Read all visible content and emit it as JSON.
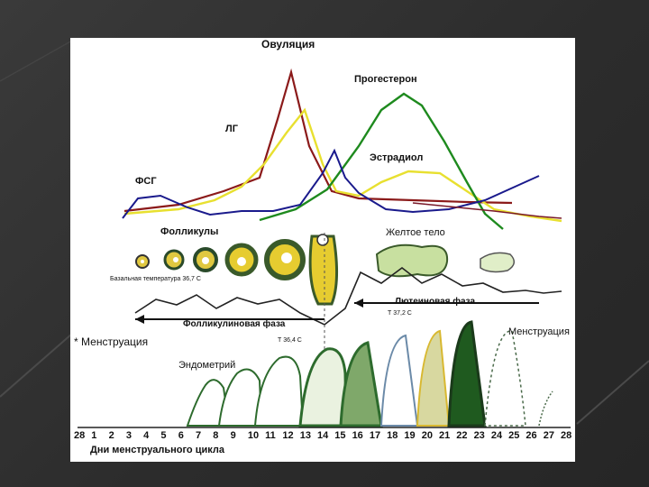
{
  "labels": {
    "ovulation": "Овуляция",
    "progesterone": "Прогестерон",
    "lh": "ЛГ",
    "estradiol": "Эстрадиол",
    "fsh": "ФСГ",
    "follicles": "Фолликулы",
    "corpus_luteum": "Желтое тело",
    "basal_temp": "Базальная температура 36,7 С",
    "luteal_phase": "Лютеиновая фаза",
    "temp_luteal": "Т 37,2 С",
    "follicular_phase": "Фолликулиновая фаза",
    "menstruation_left": "Менструация",
    "temp_follicular": "Т 36,4 С",
    "menstruation_right": "Менструация",
    "endometrium": "Эндометрий",
    "axis_title": "Дни менструального цикла"
  },
  "days": [
    "28",
    "1",
    "2",
    "3",
    "4",
    "5",
    "6",
    "7",
    "8",
    "9",
    "10",
    "11",
    "12",
    "13",
    "14",
    "15",
    "16",
    "17",
    "18",
    "19",
    "20",
    "21",
    "22",
    "23",
    "24",
    "25",
    "26",
    "27",
    "28"
  ],
  "colors": {
    "lh": "#8b1a1a",
    "estradiol": "#e8e030",
    "progesterone": "#1e8a1e",
    "fsh": "#1a1a8c",
    "follicle": "#d8c020",
    "endometrium": "#2d6b2d"
  }
}
